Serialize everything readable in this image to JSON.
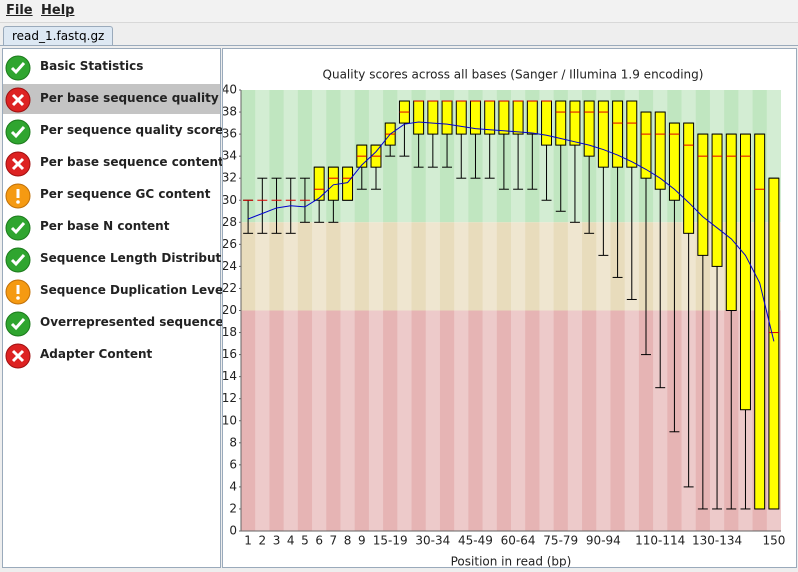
{
  "menu": [
    "File",
    "Help"
  ],
  "tab": "read_1.fastq.gz",
  "modules": [
    {
      "name": "Basic Statistics",
      "status": "pass"
    },
    {
      "name": "Per base sequence quality",
      "status": "fail",
      "selected": true
    },
    {
      "name": "Per sequence quality scores",
      "status": "pass"
    },
    {
      "name": "Per base sequence content",
      "status": "fail"
    },
    {
      "name": "Per sequence GC content",
      "status": "warn"
    },
    {
      "name": "Per base N content",
      "status": "pass"
    },
    {
      "name": "Sequence Length Distribution",
      "status": "pass"
    },
    {
      "name": "Sequence Duplication Levels",
      "status": "warn"
    },
    {
      "name": "Overrepresented sequences",
      "status": "pass"
    },
    {
      "name": "Adapter Content",
      "status": "fail"
    }
  ],
  "chart_data": {
    "type": "box",
    "title": "Quality scores across all bases (Sanger / Illumina 1.9 encoding)",
    "x_label": "Position in read (bp)",
    "categories": [
      "1",
      "2",
      "3",
      "4",
      "5",
      "6",
      "7",
      "8",
      "9",
      null,
      "15-19",
      null,
      null,
      "30-34",
      null,
      null,
      "45-49",
      null,
      null,
      "60-64",
      null,
      null,
      "75-79",
      null,
      null,
      "90-94",
      null,
      null,
      null,
      "110-114",
      null,
      null,
      null,
      "130-134",
      null,
      null,
      null,
      "150"
    ],
    "ylim": [
      0,
      40
    ],
    "yticks": [
      0,
      2,
      4,
      6,
      8,
      10,
      12,
      14,
      16,
      18,
      20,
      22,
      24,
      26,
      28,
      30,
      32,
      34,
      36,
      38,
      40
    ],
    "bands": [
      {
        "from": 28,
        "to": 40,
        "color": "#c0e6c0"
      },
      {
        "from": 20,
        "to": 28,
        "color": "#e8dcbc"
      },
      {
        "from": 0,
        "to": 20,
        "color": "#e6b4b4"
      }
    ],
    "box_color": "#ffff00",
    "median_color": "#dd0000",
    "mean_color": "#0000cc",
    "p10": [
      27,
      27,
      27,
      27,
      28,
      28,
      28,
      30,
      31,
      31,
      34,
      34,
      33,
      33,
      33,
      32,
      32,
      32,
      31,
      31,
      31,
      30,
      29,
      28,
      27,
      25,
      23,
      21,
      16,
      13,
      9,
      4,
      2,
      2,
      2,
      2,
      2,
      2
    ],
    "q1": [
      30,
      30,
      30,
      30,
      30,
      30,
      30,
      30,
      33,
      33,
      35,
      37,
      36,
      36,
      36,
      36,
      36,
      36,
      36,
      36,
      36,
      35,
      35,
      35,
      34,
      33,
      33,
      33,
      32,
      31,
      30,
      27,
      25,
      24,
      20,
      11,
      2,
      2
    ],
    "median": [
      30,
      30,
      30,
      30,
      30,
      31,
      32,
      32,
      34,
      34,
      36,
      38,
      39,
      39,
      39,
      39,
      39,
      39,
      39,
      39,
      39,
      39,
      38,
      38,
      38,
      38,
      37,
      37,
      36,
      36,
      36,
      35,
      34,
      34,
      34,
      34,
      31,
      18
    ],
    "q3": [
      30,
      30,
      30,
      30,
      30,
      33,
      33,
      33,
      35,
      35,
      37,
      39,
      39,
      39,
      39,
      39,
      39,
      39,
      39,
      39,
      39,
      39,
      39,
      39,
      39,
      39,
      39,
      39,
      38,
      38,
      37,
      37,
      36,
      36,
      36,
      36,
      36,
      32
    ],
    "p90": [
      30,
      32,
      32,
      32,
      32,
      33,
      33,
      33,
      35,
      35,
      37,
      39,
      39,
      39,
      39,
      39,
      39,
      39,
      39,
      39,
      39,
      39,
      39,
      39,
      39,
      39,
      39,
      39,
      38,
      38,
      37,
      37,
      36,
      36,
      36,
      36,
      36,
      32
    ],
    "mean": [
      28.3,
      28.8,
      29.3,
      29.5,
      29.4,
      30.2,
      31.4,
      31.6,
      33.2,
      34.4,
      36.0,
      36.9,
      37.1,
      37.0,
      36.9,
      36.7,
      36.5,
      36.4,
      36.3,
      36.2,
      36.1,
      35.9,
      35.6,
      35.3,
      35.0,
      34.6,
      34.1,
      33.5,
      32.8,
      32.0,
      31.0,
      29.8,
      28.5,
      27.5,
      26.5,
      25.0,
      22.5,
      17.2
    ]
  }
}
